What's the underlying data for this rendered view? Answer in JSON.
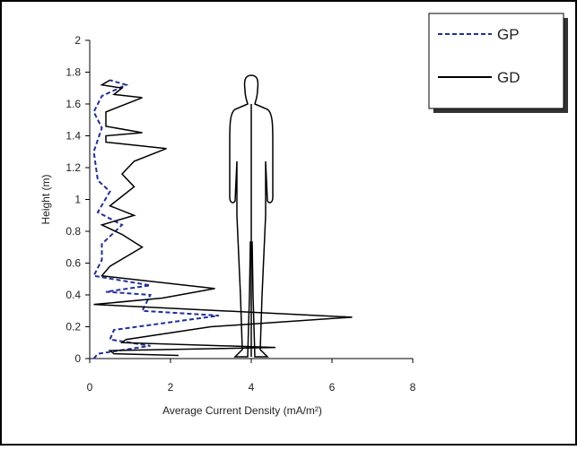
{
  "chart_data": {
    "type": "line",
    "xlabel": "Average Current Density (mA/m²)",
    "ylabel": "Height (m)",
    "xlim": [
      0,
      8
    ],
    "xticks": [
      0,
      2,
      4,
      6,
      8
    ],
    "ylim": [
      0,
      2
    ],
    "yticks": [
      0,
      0.2,
      0.4,
      0.6,
      0.8,
      1,
      1.2,
      1.4,
      1.6,
      1.8,
      2
    ],
    "series": [
      {
        "name": "GP",
        "color": "#1f2f9f",
        "dash": true,
        "x": [
          0.1,
          0.2,
          1.5,
          0.5,
          0.6,
          3.2,
          1.3,
          1.5,
          0.4,
          1.5,
          0.1,
          0.3,
          0.3,
          0.8,
          0.2,
          0.5,
          0.2,
          0.1,
          0.3,
          0.1,
          0.3,
          0.9,
          0.5
        ],
        "values": [
          0,
          0.03,
          0.08,
          0.12,
          0.18,
          0.27,
          0.3,
          0.4,
          0.42,
          0.46,
          0.52,
          0.62,
          0.72,
          0.84,
          0.92,
          1.05,
          1.12,
          1.3,
          1.45,
          1.55,
          1.65,
          1.72,
          1.75
        ]
      },
      {
        "name": "GD",
        "color": "#000000",
        "dash": false,
        "x": [
          2.2,
          0.6,
          0.5,
          4.6,
          0.8,
          0.9,
          3,
          6.5,
          0.1,
          1.8,
          3.1,
          0.3,
          0.5,
          1.3,
          0.8,
          0.3,
          1.1,
          0.5,
          0.7,
          1.1,
          0.8,
          1.1,
          1.9,
          0.4,
          0.4,
          1.3,
          0.4,
          0.4,
          1.3,
          0.6,
          0.8,
          0.3,
          0.5
        ],
        "values": [
          0.02,
          0.03,
          0.05,
          0.07,
          0.1,
          0.12,
          0.2,
          0.26,
          0.34,
          0.38,
          0.44,
          0.52,
          0.58,
          0.7,
          0.78,
          0.84,
          0.9,
          0.96,
          1,
          1.08,
          1.16,
          1.24,
          1.32,
          1.36,
          1.4,
          1.42,
          1.46,
          1.55,
          1.64,
          1.66,
          1.7,
          1.72,
          1.75
        ]
      }
    ]
  }
}
